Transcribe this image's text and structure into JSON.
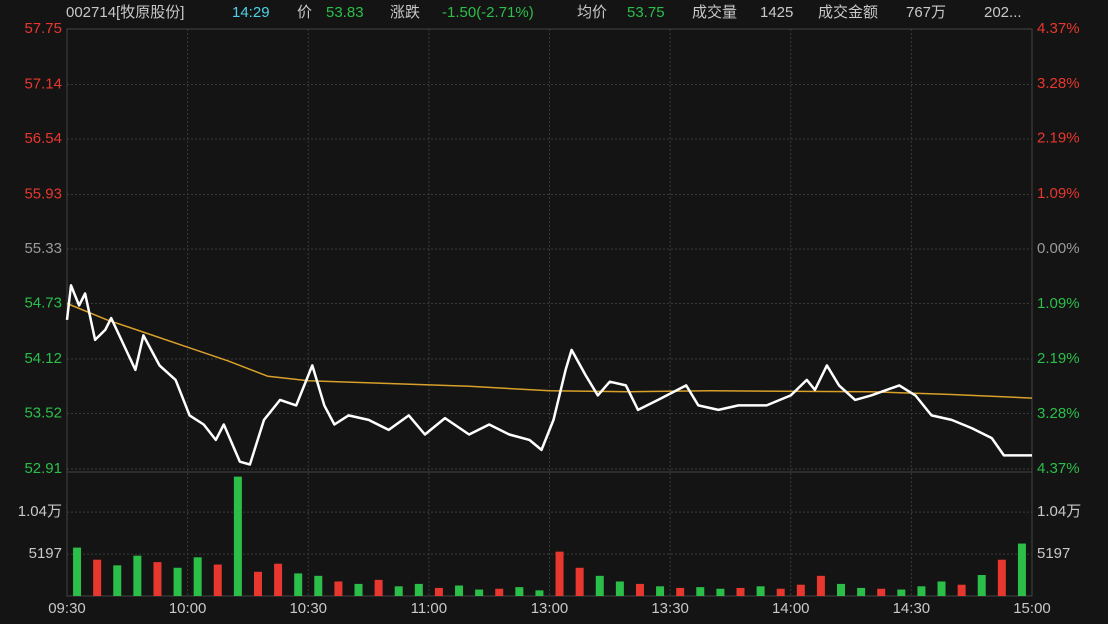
{
  "header": {
    "code": "002714[牧原股份]",
    "time": "14:29",
    "price_label": "价",
    "price": "53.83",
    "change_label": "涨跌",
    "change": "-1.50(-2.71%)",
    "avg_label": "均价",
    "avg": "53.75",
    "volume_label": "成交量",
    "volume": "1425",
    "amount_label": "成交金额",
    "amount": "767万",
    "date": "202..."
  },
  "chart_data": {
    "type": "intraday",
    "colors": {
      "up": "#e8372e",
      "down": "#2bbf4a",
      "flat": "#9a9a9a",
      "grid": "#3a3a3a"
    },
    "xlim": [
      0,
      240
    ],
    "xticks": [
      {
        "value": 0,
        "label": "09:30"
      },
      {
        "value": 30,
        "label": "10:00"
      },
      {
        "value": 60,
        "label": "10:30"
      },
      {
        "value": 90,
        "label": "11:00"
      },
      {
        "value": 120,
        "label": "13:00"
      },
      {
        "value": 150,
        "label": "13:30"
      },
      {
        "value": 180,
        "label": "14:00"
      },
      {
        "value": 210,
        "label": "14:30"
      },
      {
        "value": 240,
        "label": "15:00"
      }
    ],
    "ylim": [
      52.91,
      57.75
    ],
    "yticks": [
      57.75,
      57.14,
      56.54,
      55.93,
      55.33,
      54.73,
      54.12,
      53.52,
      52.91
    ],
    "y2lim": [
      -4.37,
      4.37
    ],
    "y2ticks": [
      {
        "value": 4.37,
        "label": "4.37%"
      },
      {
        "value": 3.28,
        "label": "3.28%"
      },
      {
        "value": 2.19,
        "label": "2.19%"
      },
      {
        "value": 1.09,
        "label": "1.09%"
      },
      {
        "value": 0,
        "label": "0.00%"
      },
      {
        "value": -1.09,
        "label": "1.09%"
      },
      {
        "value": -2.19,
        "label": "2.19%"
      },
      {
        "value": -3.28,
        "label": "3.28%"
      },
      {
        "value": -4.37,
        "label": "4.37%"
      }
    ],
    "price": {
      "color": "#ffffff",
      "x": [
        0,
        1,
        2,
        3,
        4.5,
        7,
        9.5,
        11,
        13,
        17,
        19,
        23,
        27,
        30.5,
        34,
        37,
        39,
        43,
        45.5,
        49,
        53,
        57,
        61,
        64,
        66.5,
        70,
        75,
        80,
        85,
        89,
        94,
        100,
        105,
        110,
        115,
        118,
        121,
        124,
        125.5,
        129,
        132,
        135,
        139,
        142,
        147,
        154,
        157,
        162,
        167,
        174,
        180,
        184,
        186,
        189,
        192,
        196,
        200,
        207,
        211,
        215,
        220,
        225,
        230,
        233,
        240
      ],
      "values": [
        54.55,
        54.93,
        54.82,
        54.71,
        54.84,
        54.33,
        54.44,
        54.57,
        54.38,
        54.0,
        54.38,
        54.05,
        53.89,
        53.5,
        53.4,
        53.23,
        53.4,
        52.99,
        52.96,
        53.45,
        53.67,
        53.61,
        54.05,
        53.61,
        53.4,
        53.5,
        53.45,
        53.34,
        53.5,
        53.29,
        53.47,
        53.29,
        53.4,
        53.29,
        53.23,
        53.12,
        53.45,
        54.0,
        54.22,
        53.94,
        53.72,
        53.87,
        53.83,
        53.56,
        53.67,
        53.83,
        53.61,
        53.56,
        53.61,
        53.61,
        53.72,
        53.89,
        53.78,
        54.05,
        53.83,
        53.67,
        53.72,
        53.83,
        53.72,
        53.5,
        53.45,
        53.36,
        53.25,
        53.06,
        53.06
      ]
    },
    "average": {
      "color": "#d9a02a",
      "x": [
        0,
        10,
        20,
        30,
        40,
        50,
        60,
        80,
        100,
        120,
        140,
        160,
        200,
        220,
        240
      ],
      "values": [
        54.73,
        54.55,
        54.4,
        54.25,
        54.1,
        53.93,
        53.88,
        53.85,
        53.82,
        53.77,
        53.76,
        53.77,
        53.76,
        53.73,
        53.69
      ]
    },
    "volume": {
      "ylim": [
        0,
        15000
      ],
      "yticks": [
        {
          "value": 10400,
          "label": "1.04万"
        },
        5197
      ],
      "x": [
        2.5,
        7.5,
        12.5,
        17.5,
        22.5,
        27.5,
        32.5,
        37.5,
        42.5,
        47.5,
        52.5,
        57.5,
        62.5,
        67.5,
        72.5,
        77.5,
        82.5,
        87.5,
        92.5,
        97.5,
        102.5,
        107.5,
        112.5,
        117.5,
        122.5,
        127.5,
        132.5,
        137.5,
        142.5,
        147.5,
        152.5,
        157.5,
        162.5,
        167.5,
        172.5,
        177.5,
        182.5,
        187.5,
        192.5,
        197.5,
        202.5,
        207.5,
        212.5,
        217.5,
        222.5,
        227.5,
        232.5,
        237.5
      ],
      "values": [
        6000,
        4500,
        3800,
        5000,
        4200,
        3500,
        4800,
        3900,
        14800,
        3000,
        4000,
        2800,
        2500,
        1800,
        1500,
        2000,
        1200,
        1500,
        1000,
        1300,
        800,
        900,
        1100,
        700,
        5500,
        3500,
        2500,
        1800,
        1500,
        1200,
        1000,
        1100,
        900,
        1000,
        1200,
        900,
        1400,
        2500,
        1500,
        1000,
        900,
        800,
        1200,
        1800,
        1400,
        2600,
        4500,
        6500
      ],
      "colors": [
        "#2bbf4a",
        "#e8372e",
        "#2bbf4a",
        "#2bbf4a",
        "#e8372e",
        "#2bbf4a",
        "#2bbf4a",
        "#e8372e",
        "#2bbf4a",
        "#e8372e",
        "#e8372e",
        "#2bbf4a",
        "#2bbf4a",
        "#e8372e",
        "#2bbf4a",
        "#e8372e",
        "#2bbf4a",
        "#2bbf4a",
        "#e8372e",
        "#2bbf4a",
        "#2bbf4a",
        "#e8372e",
        "#2bbf4a",
        "#2bbf4a",
        "#e8372e",
        "#e8372e",
        "#2bbf4a",
        "#2bbf4a",
        "#e8372e",
        "#2bbf4a",
        "#e8372e",
        "#2bbf4a",
        "#2bbf4a",
        "#e8372e",
        "#2bbf4a",
        "#e8372e",
        "#e8372e",
        "#e8372e",
        "#2bbf4a",
        "#2bbf4a",
        "#e8372e",
        "#2bbf4a",
        "#2bbf4a",
        "#2bbf4a",
        "#e8372e",
        "#2bbf4a",
        "#e8372e",
        "#2bbf4a"
      ]
    }
  }
}
